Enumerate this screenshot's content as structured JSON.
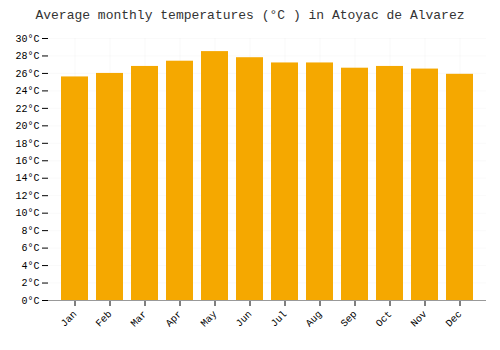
{
  "chart_data": {
    "type": "bar",
    "title": "Average monthly temperatures (°C ) in Atoyac de Alvarez",
    "categories": [
      "Jan",
      "Feb",
      "Mar",
      "Apr",
      "May",
      "Jun",
      "Jul",
      "Aug",
      "Sep",
      "Oct",
      "Nov",
      "Dec"
    ],
    "values": [
      25.6,
      26.0,
      26.8,
      27.4,
      28.5,
      27.8,
      27.2,
      27.2,
      26.6,
      26.8,
      26.5,
      25.9
    ],
    "color": "#F5A800",
    "ylim": [
      0,
      30
    ],
    "yticks": [
      {
        "value": 0,
        "label": "0°C"
      },
      {
        "value": 2,
        "label": "2°C"
      },
      {
        "value": 4,
        "label": "4°C"
      },
      {
        "value": 6,
        "label": "6°C"
      },
      {
        "value": 8,
        "label": "8°C"
      },
      {
        "value": 10,
        "label": "10°C"
      },
      {
        "value": 12,
        "label": "12°C"
      },
      {
        "value": 14,
        "label": "14°C"
      },
      {
        "value": 16,
        "label": "16°C"
      },
      {
        "value": 18,
        "label": "18°C"
      },
      {
        "value": 20,
        "label": "20°C"
      },
      {
        "value": 22,
        "label": "22°C"
      },
      {
        "value": 24,
        "label": "24°C"
      },
      {
        "value": 26,
        "label": "26°C"
      },
      {
        "value": 28,
        "label": "28°C"
      },
      {
        "value": 30,
        "label": "30°C"
      }
    ],
    "grid": true
  }
}
